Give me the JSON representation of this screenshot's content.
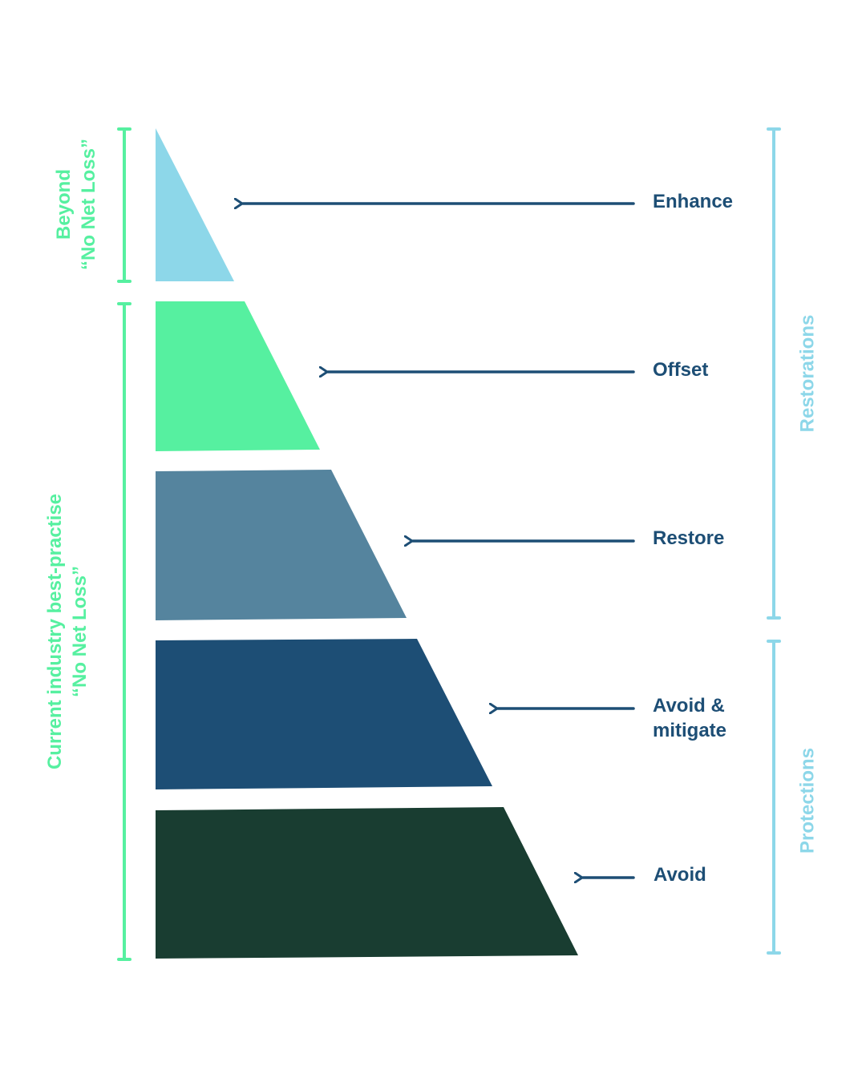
{
  "colors": {
    "tier_enhance": "#8dd7e9",
    "tier_offset": "#56f0a0",
    "tier_restore": "#55849e",
    "tier_avoid_mitigate": "#1d4e75",
    "tier_avoid": "#193d31",
    "arrow": "#1d4e75",
    "label_text": "#1d4e75",
    "left_bracket": "#56f0a0",
    "right_bracket": "#8dd7e9"
  },
  "tiers": [
    {
      "label": "Enhance"
    },
    {
      "label": "Offset"
    },
    {
      "label": "Restore"
    },
    {
      "label": "Avoid &\nmitigate"
    },
    {
      "label": "Avoid"
    }
  ],
  "left_groups": {
    "beyond": "Beyond\n“No Net Loss”",
    "current": "Current industry best-practise\n“No Net Loss”"
  },
  "right_groups": {
    "restorations": "Restorations",
    "protections": "Protections"
  }
}
